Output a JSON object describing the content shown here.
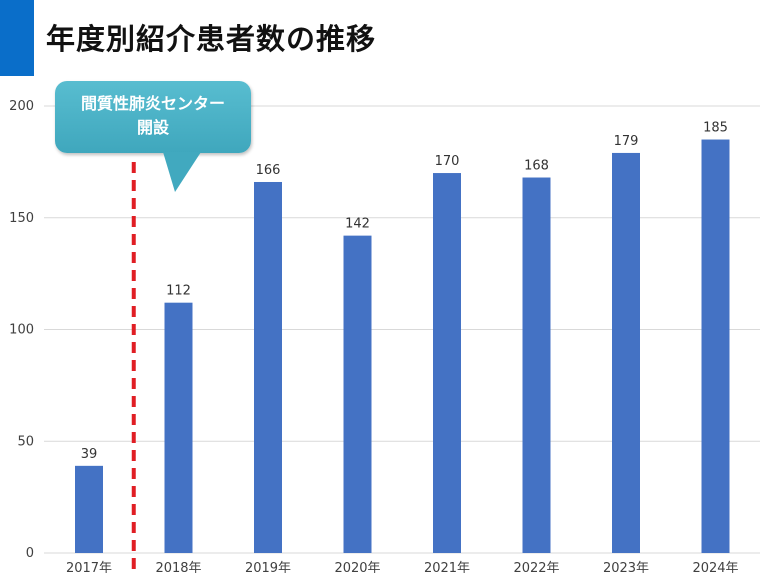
{
  "header": {
    "title": "年度別紹介患者数の推移",
    "accent_color": "#0a6ec9"
  },
  "callout": {
    "line1": "間質性肺炎センター",
    "line2": "開設",
    "color": "#4bb2c7"
  },
  "chart_data": {
    "type": "bar",
    "title": "年度別紹介患者数の推移",
    "xlabel": "",
    "ylabel": "",
    "categories": [
      "2017年",
      "2018年",
      "2019年",
      "2020年",
      "2021年",
      "2022年",
      "2023年",
      "2024年"
    ],
    "values": [
      39,
      112,
      166,
      142,
      170,
      168,
      179,
      185
    ],
    "ylim": [
      0,
      200
    ],
    "yticks": [
      0,
      50,
      100,
      150,
      200
    ],
    "bar_color": "#4472c4",
    "grid": true,
    "legend": "none",
    "marker_line": {
      "between": [
        "2017年",
        "2018年"
      ],
      "color": "#e01e24",
      "style": "dashed"
    }
  }
}
